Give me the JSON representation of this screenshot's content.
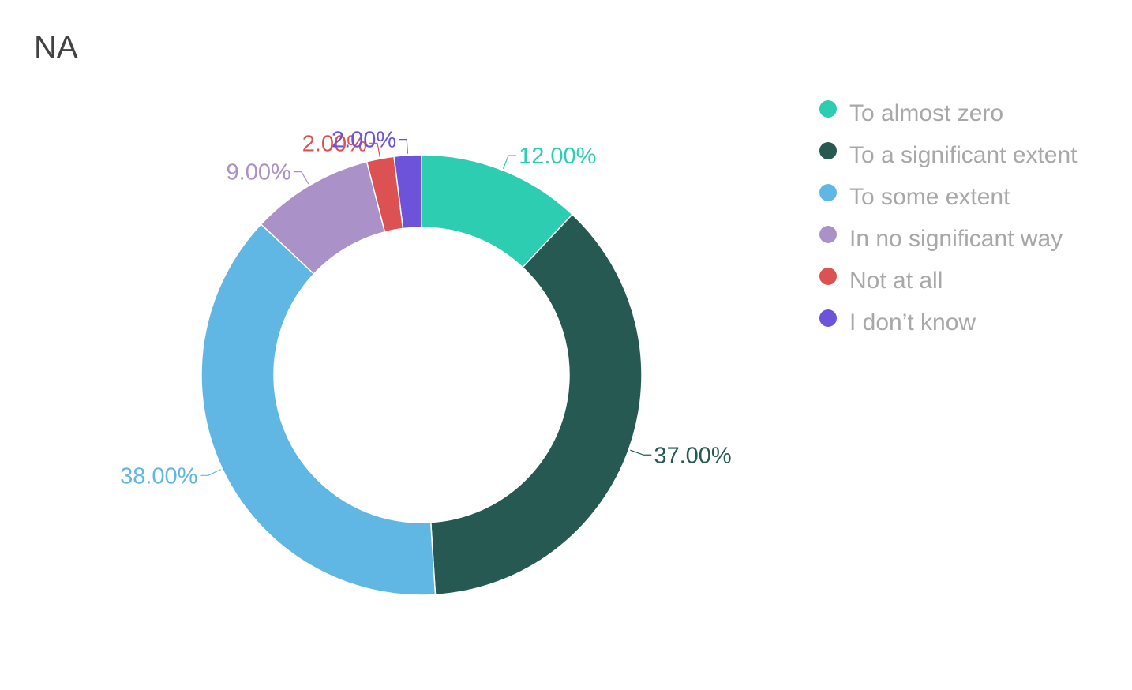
{
  "chart_data": {
    "type": "pie",
    "title": "NA",
    "legend_position": "right",
    "categories": [
      "To almost zero",
      "To a significant extent",
      "To some extent",
      "In no significant way",
      "Not at all",
      "I don’t know"
    ],
    "values": [
      12,
      37,
      38,
      9,
      2,
      2
    ],
    "labels": [
      "12.00%",
      "37.00%",
      "38.00%",
      "9.00%",
      "2.00%",
      "2.00%"
    ],
    "colors": [
      "#2ccdb1",
      "#255951",
      "#61b7e4",
      "#aa91c7",
      "#dc5151",
      "#6c53da"
    ],
    "donut": true
  }
}
